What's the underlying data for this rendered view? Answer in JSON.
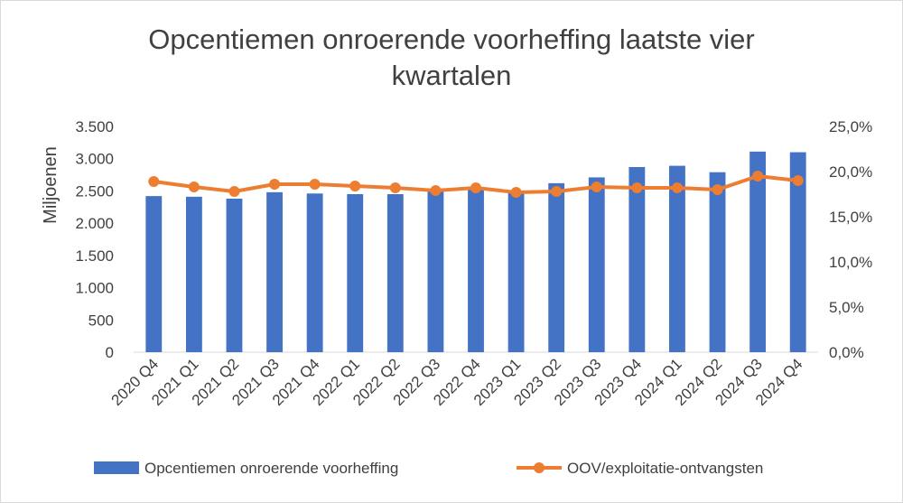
{
  "chart_data": {
    "type": "bar+line",
    "title": "Opcentiemen onroerende voorheffing laatste vier kwartalen",
    "y_label": "Miljoenen",
    "categories": [
      "2020 Q4",
      "2021 Q1",
      "2021 Q2",
      "2021 Q3",
      "2021 Q4",
      "2022 Q1",
      "2022 Q2",
      "2022 Q3",
      "2022 Q4",
      "2023 Q1",
      "2023 Q2",
      "2023 Q3",
      "2023 Q4",
      "2024 Q1",
      "2024 Q2",
      "2024 Q3",
      "2024 Q4"
    ],
    "series": [
      {
        "name": "Opcentiemen onroerende voorheffing",
        "type": "bar",
        "color": "#4472c4",
        "axis": "y",
        "values": [
          2420,
          2410,
          2380,
          2480,
          2460,
          2450,
          2450,
          2490,
          2520,
          2500,
          2620,
          2710,
          2870,
          2890,
          2790,
          3110,
          3100
        ]
      },
      {
        "name": "OOV/exploitatie-ontvangsten",
        "type": "line",
        "color": "#ed7d31",
        "axis": "y2",
        "values": [
          18.9,
          18.3,
          17.8,
          18.6,
          18.6,
          18.4,
          18.2,
          17.9,
          18.2,
          17.7,
          17.8,
          18.3,
          18.2,
          18.2,
          18.0,
          19.5,
          19.0
        ]
      }
    ],
    "ylim": [
      0,
      3500
    ],
    "yticks": [
      0,
      {
        "value": 500,
        "label": "500"
      },
      {
        "value": 1000,
        "label": "1.000"
      },
      {
        "value": 1500,
        "label": "1.500"
      },
      {
        "value": 2000,
        "label": "2.000"
      },
      {
        "value": 2500,
        "label": "2.500"
      },
      {
        "value": 3000,
        "label": "3.000"
      },
      {
        "value": 3500,
        "label": "3.500"
      }
    ],
    "y2lim": [
      0,
      25
    ],
    "y2ticks": [
      {
        "value": 0,
        "label": "0,0%"
      },
      {
        "value": 5,
        "label": "5,0%"
      },
      {
        "value": 10,
        "label": "10,0%"
      },
      {
        "value": 15,
        "label": "15,0%"
      },
      {
        "value": 20,
        "label": "20,0%"
      },
      {
        "value": 25,
        "label": "25,0%"
      }
    ],
    "legend": "bottom"
  }
}
